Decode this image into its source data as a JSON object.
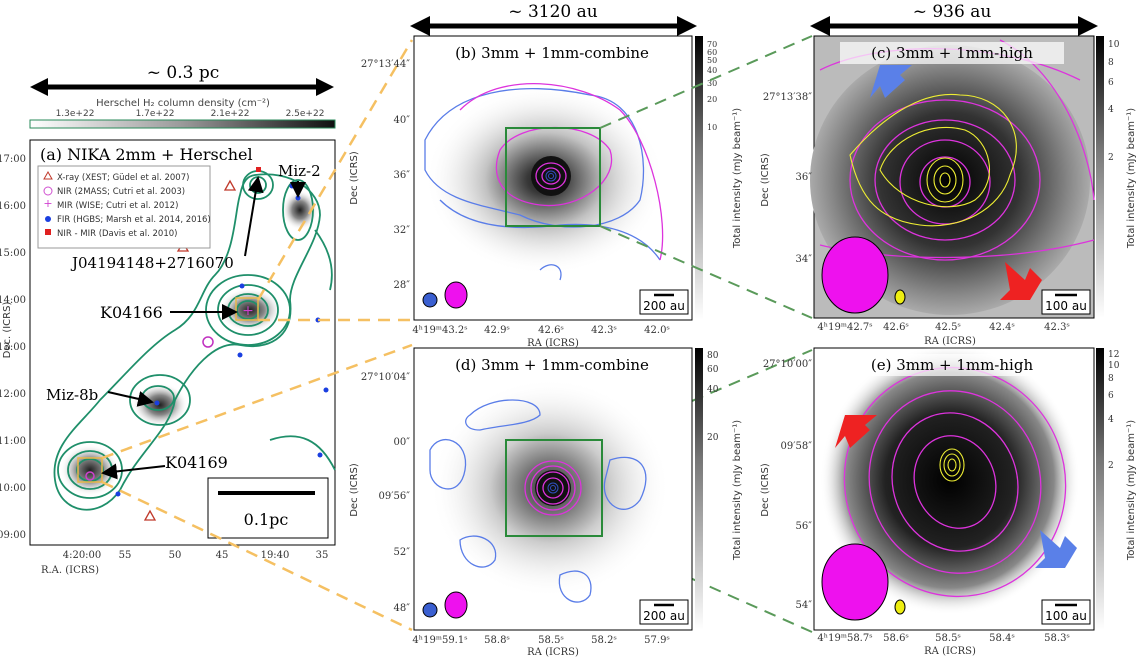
{
  "scales": {
    "top_left": "~ 0.3 pc",
    "top_mid": "~ 3120 au",
    "top_right": "~ 936 au"
  },
  "colorbar_herschel": {
    "title": "Herschel H₂ column density (cm⁻²)",
    "ticks": [
      "1.3e+22",
      "1.7e+22",
      "2.1e+22",
      "2.5e+22"
    ]
  },
  "panel_a": {
    "title": "(a) NIKA 2mm + Herschel",
    "legend": [
      {
        "label": "X-ray (XEST; Güdel et al. 2007)",
        "color": "#c0392b"
      },
      {
        "label": "NIR (2MASS; Cutri et al. 2003)",
        "color": "#d04fd0"
      },
      {
        "label": "MIR (WISE; Cutri et al. 2012)",
        "color": "#d040d0"
      },
      {
        "label": "FIR (HGBS; Marsh et al. 2014, 2016)",
        "color": "#1a3fe0"
      },
      {
        "label": "NIR - MIR (Davis et al. 2010)",
        "color": "#e02020"
      }
    ],
    "labels": {
      "miz2": "Miz-2",
      "j0419": "J04194148+2716070",
      "k04166": "K04166",
      "miz8b": "Miz-8b",
      "k04169": "K04169"
    },
    "scalebar": "0.1pc",
    "yticks": [
      "17:00",
      "16:00",
      "15:00",
      "14:00",
      "13:00",
      "12:00",
      "11:00",
      "27:10:00",
      "09:00"
    ],
    "xticks": [
      "4:20:00",
      "55",
      "50",
      "45",
      "19:40",
      "35"
    ],
    "xlabel": "R.A. (ICRS)",
    "ylabel": "Dec. (ICRS)"
  },
  "panel_b": {
    "title": "(b) 3mm + 1mm-combine",
    "yticks": [
      "27°13′44″",
      "40″",
      "36″",
      "32″",
      "28″"
    ],
    "xticks": [
      "4ʰ19ᵐ43.2ˢ",
      "42.9ˢ",
      "42.6ˢ",
      "42.3ˢ",
      "42.0ˢ"
    ],
    "xlabel": "RA (ICRS)",
    "ylabel": "Dec (ICRS)",
    "scalebar": "200 au",
    "cbar_ticks": [
      "70",
      "60",
      "50",
      "40",
      "30",
      "20",
      "10"
    ],
    "cbar_label": "Total intensity (mJy beam⁻¹)"
  },
  "panel_c": {
    "title": "(c) 3mm + 1mm-high",
    "yticks": [
      "27°13′38″",
      "36″",
      "34″"
    ],
    "xticks": [
      "4ʰ19ᵐ42.7ˢ",
      "42.6ˢ",
      "42.5ˢ",
      "42.4ˢ",
      "42.3ˢ"
    ],
    "xlabel": "RA (ICRS)",
    "ylabel": "Dec (ICRS)",
    "scalebar": "100 au",
    "cbar_ticks": [
      "10",
      "8",
      "6",
      "4",
      "2"
    ],
    "cbar_label": "Total intensity (mJy beam⁻¹)"
  },
  "panel_d": {
    "title": "(d) 3mm + 1mm-combine",
    "yticks": [
      "27°10′04″",
      "00″",
      "09′56″",
      "52″",
      "48″"
    ],
    "xticks": [
      "4ʰ19ᵐ59.1ˢ",
      "58.8ˢ",
      "58.5ˢ",
      "58.2ˢ",
      "57.9ˢ"
    ],
    "xlabel": "RA (ICRS)",
    "ylabel": "Dec (ICRS)",
    "scalebar": "200 au",
    "cbar_ticks": [
      "80",
      "60",
      "40",
      "20"
    ],
    "cbar_label": "Total intensity (mJy beam⁻¹)"
  },
  "panel_e": {
    "title": "(e) 3mm + 1mm-high",
    "yticks": [
      "27°10′00″",
      "09′58″",
      "56″",
      "54″"
    ],
    "xticks": [
      "4ʰ19ᵐ58.7ˢ",
      "58.6ˢ",
      "58.5ˢ",
      "58.4ˢ",
      "58.3ˢ"
    ],
    "xlabel": "RA (ICRS)",
    "ylabel": "Dec (ICRS)",
    "scalebar": "100 au",
    "cbar_ticks": [
      "12",
      "10",
      "8",
      "6",
      "4",
      "2"
    ],
    "cbar_label": "Total intensity (mJy beam⁻¹)"
  }
}
